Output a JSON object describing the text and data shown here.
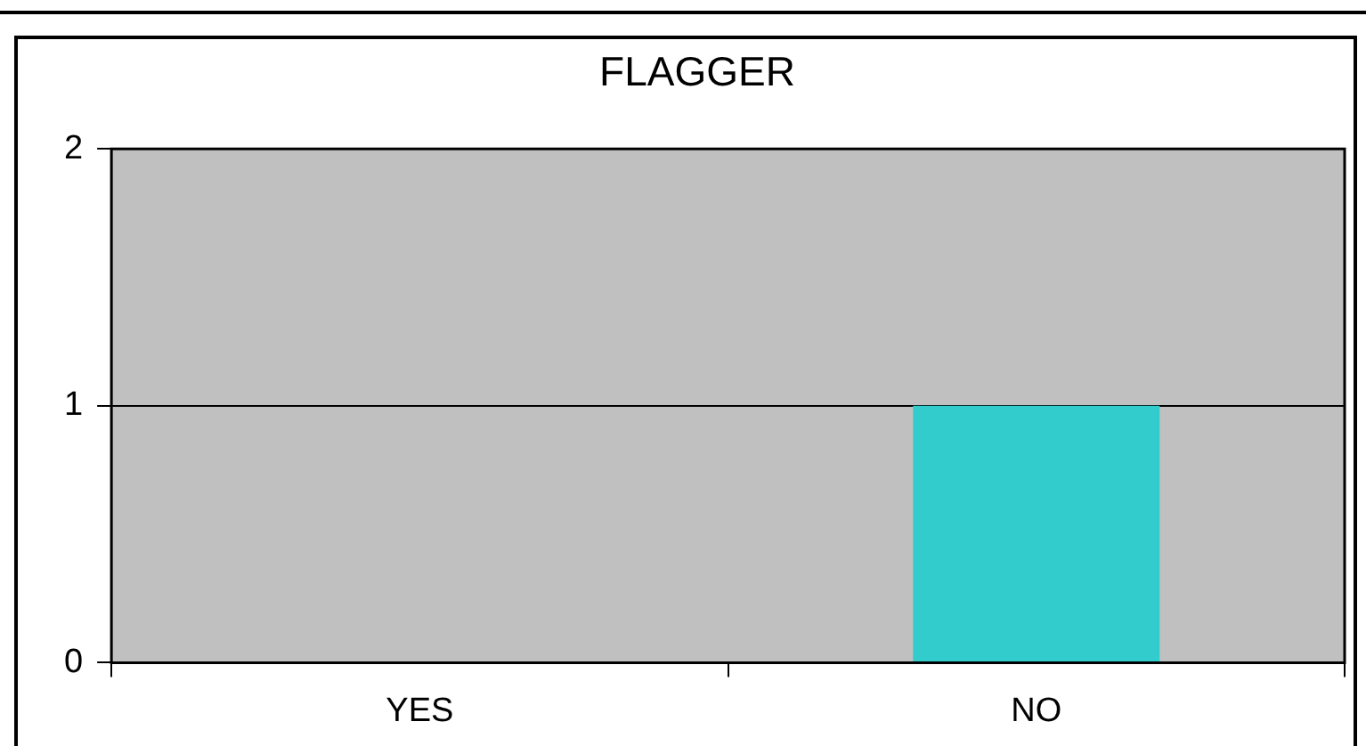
{
  "chart_data": {
    "type": "bar",
    "title": "FLAGGER",
    "categories": [
      "YES",
      "NO"
    ],
    "values": [
      0,
      1
    ],
    "color": "#33cccc",
    "ylim": [
      0,
      2
    ],
    "yticks": [
      0,
      1,
      2
    ],
    "grid": "y",
    "legend": false
  }
}
